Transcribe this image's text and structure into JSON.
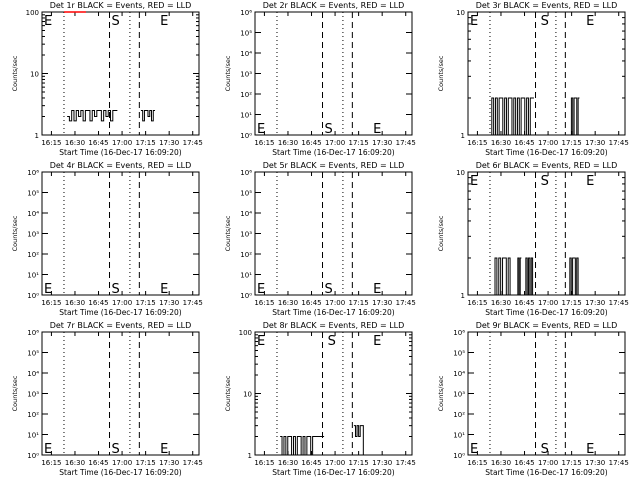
{
  "chart_data": [
    {
      "type": "line",
      "title": "Det 1r BLACK = Events, RED = LLD",
      "xlabel": "Start Time (16-Dec-17 16:09:20)",
      "ylabel": "Counts/sec",
      "y_scale": "log",
      "ylim": [
        1,
        100
      ],
      "ytick_labels": [
        "1",
        "10",
        "100"
      ],
      "x_tick_labels": [
        "16:15",
        "16:30",
        "16:45",
        "17:00",
        "17:15",
        "17:30",
        "17:45"
      ],
      "x_range_minutes": [
        0,
        100
      ],
      "markers": [
        {
          "label": "E",
          "x_minutes": 0
        },
        {
          "label": "S",
          "x_minutes": 43
        },
        {
          "label": "E",
          "x_minutes": 74
        }
      ],
      "dotted_lines_minutes": [
        14,
        56
      ],
      "dashed_lines_minutes": [
        43,
        62
      ],
      "series": [
        {
          "color": "#000000",
          "segments": [
            {
              "x_range": [
                16,
                48
              ],
              "values": [
                2,
                1.7,
                2.5,
                1.7,
                2.5,
                2,
                2.5,
                1.7,
                2.5,
                2.5,
                1.7,
                2.5,
                2,
                2.5,
                2.5,
                1.7,
                2.5,
                2,
                2.5,
                1.7,
                2.5,
                2.5
              ]
            },
            {
              "x_range": [
                63,
                72
              ],
              "values": [
                2.5,
                1.7,
                2.5,
                2.5,
                2,
                2.5,
                1.7,
                2.5
              ]
            }
          ]
        },
        {
          "color": "#ff0000",
          "segments": [
            {
              "x_range": [
                14,
                28
              ],
              "values": [
                100,
                100,
                100,
                100,
                100,
                100,
                100,
                100,
                100
              ]
            }
          ]
        }
      ]
    },
    {
      "type": "line",
      "title": "Det 2r BLACK = Events, RED = LLD",
      "xlabel": "Start Time (16-Dec-17 16:09:20)",
      "ylabel": "Counts/sec",
      "y_scale": "log",
      "ylim": [
        1,
        1000000
      ],
      "ytick_labels": [
        "10⁰",
        "10¹",
        "10²",
        "10³",
        "10⁴",
        "10⁵",
        "10⁶"
      ],
      "x_tick_labels": [
        "16:15",
        "16:30",
        "16:45",
        "17:00",
        "17:15",
        "17:30",
        "17:45"
      ],
      "x_range_minutes": [
        0,
        100
      ],
      "markers": [
        {
          "label": "E",
          "x_minutes": 0
        },
        {
          "label": "S",
          "x_minutes": 43
        },
        {
          "label": "E",
          "x_minutes": 74
        }
      ],
      "dotted_lines_minutes": [
        14,
        56
      ],
      "dashed_lines_minutes": [
        43,
        62
      ],
      "series": []
    },
    {
      "type": "line",
      "title": "Det 3r BLACK = Events, RED = LLD",
      "xlabel": "Start Time (16-Dec-17 16:09:20)",
      "ylabel": "Counts/sec",
      "y_scale": "log",
      "ylim": [
        1,
        10
      ],
      "ytick_labels": [
        "1",
        "10"
      ],
      "x_tick_labels": [
        "16:15",
        "16:30",
        "16:45",
        "17:00",
        "17:15",
        "17:30",
        "17:45"
      ],
      "x_range_minutes": [
        0,
        100
      ],
      "markers": [
        {
          "label": "E",
          "x_minutes": 0
        },
        {
          "label": "S",
          "x_minutes": 45
        },
        {
          "label": "E",
          "x_minutes": 74
        }
      ],
      "dotted_lines_minutes": [
        14,
        56
      ],
      "dashed_lines_minutes": [
        43,
        62
      ],
      "series": [
        {
          "color": "#000000",
          "segments": [
            {
              "x_range": [
                14,
                42
              ],
              "values": [
                1,
                2,
                1,
                2,
                1,
                2,
                2,
                1,
                2,
                1,
                2,
                2,
                1,
                2,
                1,
                2,
                1,
                2,
                2,
                1,
                2,
                1,
                2,
                2
              ]
            },
            {
              "x_range": [
                65,
                71
              ],
              "values": [
                1,
                2,
                1,
                2,
                2,
                1,
                2
              ]
            }
          ]
        }
      ]
    },
    {
      "type": "line",
      "title": "Det 4r BLACK = Events, RED = LLD",
      "xlabel": "Start Time (16-Dec-17 16:09:20)",
      "ylabel": "Counts/sec",
      "y_scale": "log",
      "ylim": [
        1,
        1000000
      ],
      "ytick_labels": [
        "10⁰",
        "10¹",
        "10²",
        "10³",
        "10⁴",
        "10⁵",
        "10⁶"
      ],
      "x_tick_labels": [
        "16:15",
        "16:30",
        "16:45",
        "17:00",
        "17:15",
        "17:30",
        "17:45"
      ],
      "x_range_minutes": [
        0,
        100
      ],
      "markers": [
        {
          "label": "E",
          "x_minutes": 0
        },
        {
          "label": "S",
          "x_minutes": 43
        },
        {
          "label": "E",
          "x_minutes": 74
        }
      ],
      "dotted_lines_minutes": [
        14,
        56
      ],
      "dashed_lines_minutes": [
        43,
        62
      ],
      "series": []
    },
    {
      "type": "line",
      "title": "Det 5r BLACK = Events, RED = LLD",
      "xlabel": "Start Time (16-Dec-17 16:09:20)",
      "ylabel": "Counts/sec",
      "y_scale": "log",
      "ylim": [
        1,
        1000000
      ],
      "ytick_labels": [
        "10⁰",
        "10¹",
        "10²",
        "10³",
        "10⁴",
        "10⁵",
        "10⁶"
      ],
      "x_tick_labels": [
        "16:15",
        "16:30",
        "16:45",
        "17:00",
        "17:15",
        "17:30",
        "17:45"
      ],
      "x_range_minutes": [
        0,
        100
      ],
      "markers": [
        {
          "label": "E",
          "x_minutes": 0
        },
        {
          "label": "S",
          "x_minutes": 43
        },
        {
          "label": "E",
          "x_minutes": 74
        }
      ],
      "dotted_lines_minutes": [
        14,
        56
      ],
      "dashed_lines_minutes": [
        43,
        62
      ],
      "series": []
    },
    {
      "type": "line",
      "title": "Det 6r BLACK = Events, RED = LLD",
      "xlabel": "Start Time (16-Dec-17 16:09:20)",
      "ylabel": "Counts/sec",
      "y_scale": "log",
      "ylim": [
        1,
        10
      ],
      "ytick_labels": [
        "1",
        "10"
      ],
      "x_tick_labels": [
        "16:15",
        "16:30",
        "16:45",
        "17:00",
        "17:15",
        "17:30",
        "17:45"
      ],
      "x_range_minutes": [
        0,
        100
      ],
      "markers": [
        {
          "label": "E",
          "x_minutes": 0
        },
        {
          "label": "S",
          "x_minutes": 45
        },
        {
          "label": "E",
          "x_minutes": 74
        }
      ],
      "dotted_lines_minutes": [
        14,
        56
      ],
      "dashed_lines_minutes": [
        43,
        62
      ],
      "series": [
        {
          "color": "#000000",
          "segments": [
            {
              "x_range": [
                16,
                28
              ],
              "values": [
                1,
                2,
                1,
                2,
                1,
                2,
                2,
                1,
                2,
                1
              ]
            },
            {
              "x_range": [
                31,
                34
              ],
              "values": [
                1,
                2,
                1,
                2
              ]
            },
            {
              "x_range": [
                36,
                42
              ],
              "values": [
                1,
                2,
                1,
                2,
                1,
                2,
                1
              ]
            },
            {
              "x_range": [
                64,
                71
              ],
              "values": [
                1,
                2,
                1,
                2,
                2,
                1,
                2,
                1
              ]
            }
          ]
        }
      ]
    },
    {
      "type": "line",
      "title": "Det 7r BLACK = Events, RED = LLD",
      "xlabel": "Start Time (16-Dec-17 16:09:20)",
      "ylabel": "Counts/sec",
      "y_scale": "log",
      "ylim": [
        1,
        1000000
      ],
      "ytick_labels": [
        "10⁰",
        "10¹",
        "10²",
        "10³",
        "10⁴",
        "10⁵",
        "10⁶"
      ],
      "x_tick_labels": [
        "16:15",
        "16:30",
        "16:45",
        "17:00",
        "17:15",
        "17:30",
        "17:45"
      ],
      "x_range_minutes": [
        0,
        100
      ],
      "markers": [
        {
          "label": "E",
          "x_minutes": 0
        },
        {
          "label": "S",
          "x_minutes": 43
        },
        {
          "label": "E",
          "x_minutes": 74
        }
      ],
      "dotted_lines_minutes": [
        14,
        56
      ],
      "dashed_lines_minutes": [
        43,
        62
      ],
      "series": []
    },
    {
      "type": "line",
      "title": "Det 8r BLACK = Events, RED = LLD",
      "xlabel": "Start Time (16-Dec-17 16:09:20)",
      "ylabel": "Counts/sec",
      "y_scale": "log",
      "ylim": [
        1,
        100
      ],
      "ytick_labels": [
        "1",
        "10",
        "100"
      ],
      "x_tick_labels": [
        "16:15",
        "16:30",
        "16:45",
        "17:00",
        "17:15",
        "17:30",
        "17:45"
      ],
      "x_range_minutes": [
        0,
        100
      ],
      "markers": [
        {
          "label": "E",
          "x_minutes": 0
        },
        {
          "label": "S",
          "x_minutes": 45
        },
        {
          "label": "E",
          "x_minutes": 74
        }
      ],
      "dotted_lines_minutes": [
        14,
        56
      ],
      "dashed_lines_minutes": [
        43,
        62
      ],
      "series": [
        {
          "color": "#000000",
          "segments": [
            {
              "x_range": [
                16,
                44
              ],
              "values": [
                2,
                1,
                2,
                1,
                2,
                2,
                1,
                2,
                1,
                2,
                2,
                1,
                2,
                1,
                2,
                2,
                1,
                2,
                2,
                2,
                2,
                2,
                2
              ]
            },
            {
              "x_range": [
                63,
                70
              ],
              "values": [
                3,
                2,
                3,
                2,
                3,
                3,
                1
              ]
            }
          ]
        }
      ]
    },
    {
      "type": "line",
      "title": "Det 9r BLACK = Events, RED = LLD",
      "xlabel": "Start Time (16-Dec-17 16:09:20)",
      "ylabel": "Counts/sec",
      "y_scale": "log",
      "ylim": [
        1,
        1000000
      ],
      "ytick_labels": [
        "10⁰",
        "10¹",
        "10²",
        "10³",
        "10⁴",
        "10⁵",
        "10⁶"
      ],
      "x_tick_labels": [
        "16:15",
        "16:30",
        "16:45",
        "17:00",
        "17:15",
        "17:30",
        "17:45"
      ],
      "x_range_minutes": [
        0,
        100
      ],
      "markers": [
        {
          "label": "E",
          "x_minutes": 0
        },
        {
          "label": "S",
          "x_minutes": 45
        },
        {
          "label": "E",
          "x_minutes": 74
        }
      ],
      "dotted_lines_minutes": [
        14,
        56
      ],
      "dashed_lines_minutes": [
        43,
        62
      ],
      "series": []
    }
  ]
}
